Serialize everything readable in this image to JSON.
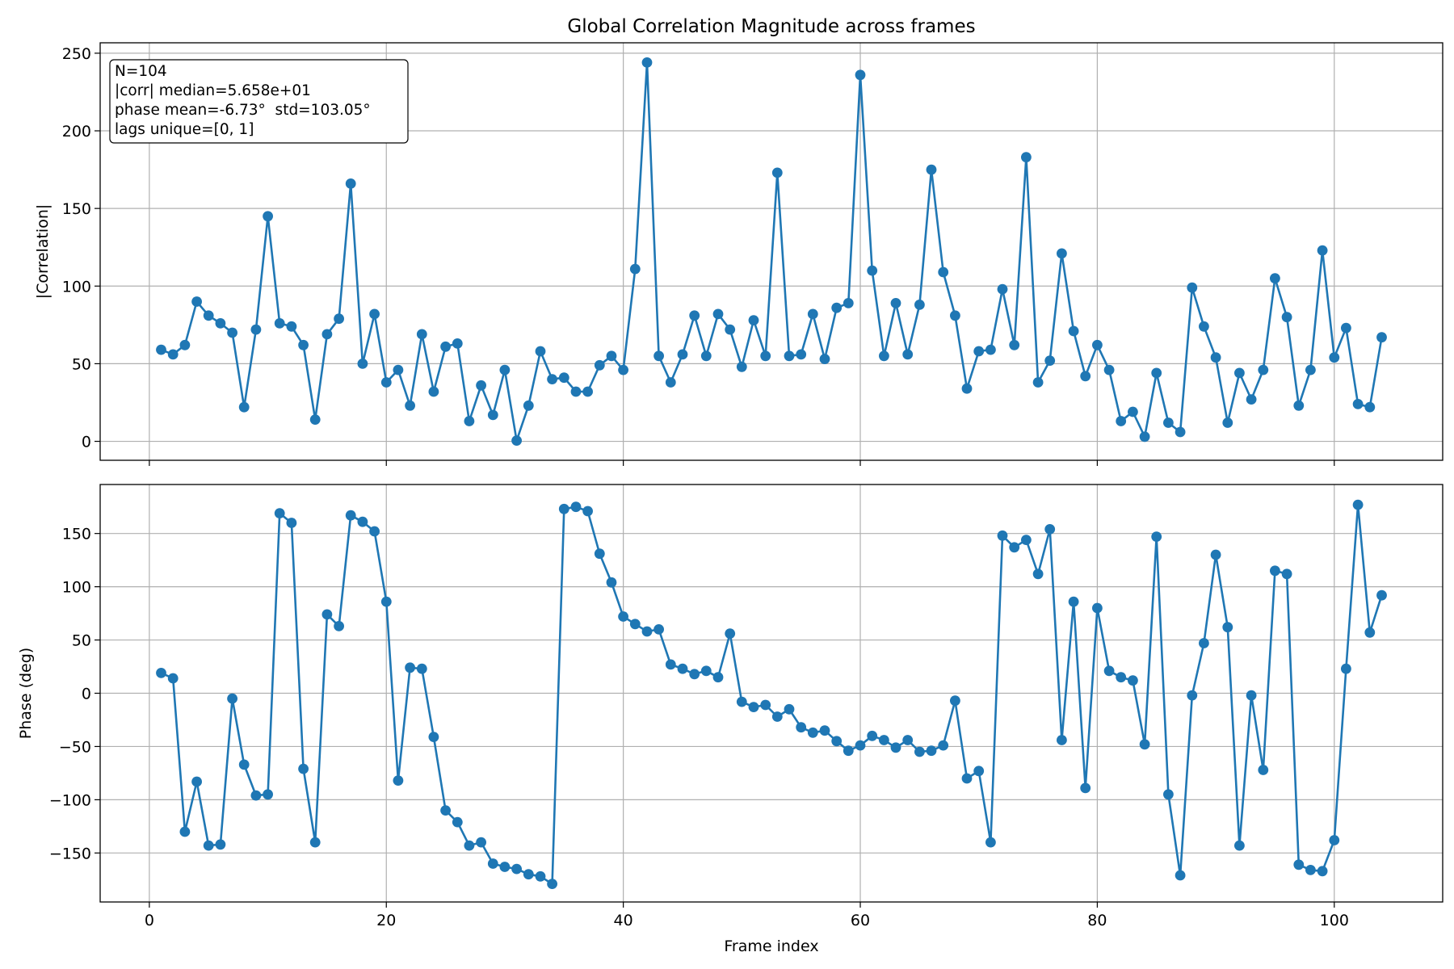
{
  "chart_data": [
    {
      "type": "line",
      "title": "Global Correlation Magnitude across frames",
      "xlabel": "",
      "ylabel": "|Correlation|",
      "xlim": [
        -4.15,
        109.15
      ],
      "ylim": [
        -12.2,
        256.7
      ],
      "xticks": [
        0,
        20,
        40,
        60,
        80,
        100
      ],
      "xtick_labels_visible": false,
      "yticks": [
        0,
        50,
        100,
        150,
        200,
        250
      ],
      "grid": true,
      "markers": "circle",
      "color": "#1f77b4",
      "annotation": {
        "placement": "top-left",
        "lines": [
          "N=104",
          "|corr| median=5.658e+01",
          "phase mean=-6.73°  std=103.05°",
          "lags unique=[0, 1]"
        ]
      },
      "x_start": 1,
      "x_step": 1,
      "values": [
        59,
        56,
        62,
        90,
        81,
        76,
        70,
        22,
        72,
        145,
        76,
        74,
        62,
        14,
        69,
        79,
        166,
        50,
        82,
        38,
        46,
        23,
        69,
        32,
        61,
        63,
        13,
        36,
        17,
        46,
        0.5,
        23,
        58,
        40,
        41,
        32,
        32,
        49,
        55,
        46,
        111,
        244,
        55,
        38,
        56,
        81,
        55,
        82,
        72,
        48,
        78,
        55,
        173,
        55,
        56,
        82,
        53,
        86,
        89,
        236,
        110,
        55,
        89,
        56,
        88,
        175,
        109,
        81,
        34,
        58,
        59,
        98,
        62,
        183,
        38,
        52,
        121,
        71,
        42,
        62,
        46,
        13,
        19,
        3,
        44,
        12,
        6,
        99,
        74,
        54,
        12,
        44,
        27,
        46,
        105,
        80,
        23,
        46,
        123,
        54,
        73,
        24,
        22,
        67
      ]
    },
    {
      "type": "line",
      "title": "",
      "xlabel": "Frame index",
      "ylabel": "Phase (deg)",
      "xlim": [
        -4.15,
        109.15
      ],
      "ylim": [
        -196,
        196
      ],
      "xticks": [
        0,
        20,
        40,
        60,
        80,
        100
      ],
      "yticks": [
        -150,
        -100,
        -50,
        0,
        50,
        100,
        150
      ],
      "grid": true,
      "markers": "circle",
      "color": "#1f77b4",
      "x_start": 1,
      "x_step": 1,
      "values": [
        19,
        14,
        -130,
        -83,
        -143,
        -142,
        -5,
        -67,
        -96,
        -95,
        169,
        160,
        -71,
        -140,
        74,
        63,
        167,
        161,
        152,
        86,
        -82,
        24,
        23,
        -41,
        -110,
        -121,
        -143,
        -140,
        -160,
        -163,
        -165,
        -170,
        -172,
        -179,
        173,
        175,
        171,
        131,
        104,
        72,
        65,
        58,
        60,
        27,
        23,
        18,
        21,
        15,
        56,
        -8,
        -13,
        -11,
        -22,
        -15,
        -32,
        -37,
        -35,
        -45,
        -54,
        -49,
        -40,
        -44,
        -51,
        -44,
        -55,
        -54,
        -49,
        -7,
        -80,
        -73,
        -140,
        148,
        137,
        144,
        112,
        154,
        -44,
        86,
        -89,
        80,
        21,
        15,
        12,
        -48,
        147,
        -95,
        -171,
        -2,
        47,
        130,
        62,
        -143,
        -2,
        -72,
        115,
        112,
        -161,
        -166,
        -167,
        -138,
        23,
        177,
        57,
        92
      ]
    }
  ]
}
